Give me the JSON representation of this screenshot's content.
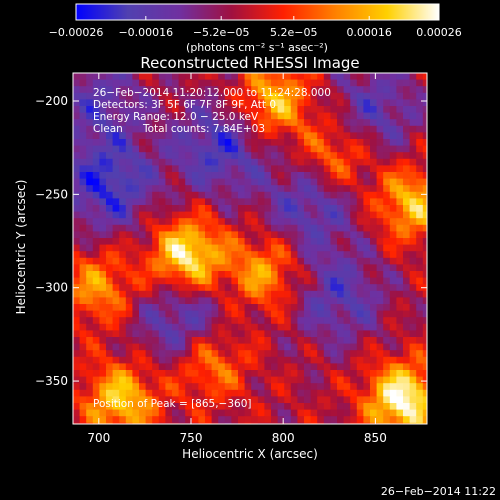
{
  "chart_data": {
    "type": "heatmap",
    "title": "Reconstructed RHESSI Image",
    "xlabel": "Heliocentric X (arcsec)",
    "ylabel": "Heliocentric Y (arcsec)",
    "xlim": [
      686,
      878
    ],
    "ylim": [
      -373,
      -185
    ],
    "x_ticks": [
      700,
      750,
      800,
      850
    ],
    "x_tick_labels": [
      "700",
      "750",
      "800",
      "850"
    ],
    "y_ticks": [
      -200,
      -250,
      -300,
      -350
    ],
    "y_tick_labels": [
      "−200",
      "−250",
      "−300",
      "−350"
    ],
    "colorbar": {
      "min": -0.00026,
      "max": 0.00026,
      "ticks": [
        -0.00026,
        -0.00016,
        -5.2e-05,
        5.2e-05,
        0.00016,
        0.00026
      ],
      "tick_labels": [
        "−0.00026",
        "−0.00016",
        "−5.2e−05",
        "5.2e−05",
        "0.00016",
        "0.00026"
      ],
      "unit_label": "(photons cm⁻² s⁻¹ asec⁻²)",
      "colormap": [
        "#0000ff",
        "#5040b0",
        "#7030a0",
        "#a01040",
        "#ff2000",
        "#ff8000",
        "#ffd000",
        "#ffffff"
      ]
    },
    "annotations": [
      "26−Feb−2014 11:20:12.000 to 11:24:28.000",
      "Detectors: 3F 5F 6F 7F 8F 9F, Att 0",
      "Energy Range: 12.0 − 25.0 keV",
      "Clean",
      "Total counts: 7.84E+03"
    ],
    "peak_label": "Position of Peak = [865,−360]",
    "peak": [
      865,
      -360
    ],
    "sources": [
      {
        "x": 748,
        "y": -283,
        "level": 0.95
      },
      {
        "x": 865,
        "y": -360,
        "level": 1.0
      },
      {
        "x": 712,
        "y": -360,
        "level": 0.75
      },
      {
        "x": 795,
        "y": -200,
        "level": 0.7
      },
      {
        "x": 870,
        "y": -255,
        "level": 0.7
      },
      {
        "x": 790,
        "y": -292,
        "level": 0.6
      },
      {
        "x": 700,
        "y": -300,
        "level": 0.55
      },
      {
        "x": 828,
        "y": -230,
        "level": 0.55
      },
      {
        "x": 760,
        "y": -340,
        "level": 0.55
      }
    ],
    "troughs": [
      {
        "x": 705,
        "y": -245,
        "level": 1.0
      },
      {
        "x": 765,
        "y": -225,
        "level": 0.9
      },
      {
        "x": 745,
        "y": -318,
        "level": 0.85
      },
      {
        "x": 815,
        "y": -255,
        "level": 0.8
      },
      {
        "x": 830,
        "y": -305,
        "level": 0.75
      },
      {
        "x": 850,
        "y": -205,
        "level": 0.7
      },
      {
        "x": 700,
        "y": -200,
        "level": 0.65
      }
    ]
  },
  "footer": {
    "timestamp": "26−Feb−2014 11:22"
  }
}
